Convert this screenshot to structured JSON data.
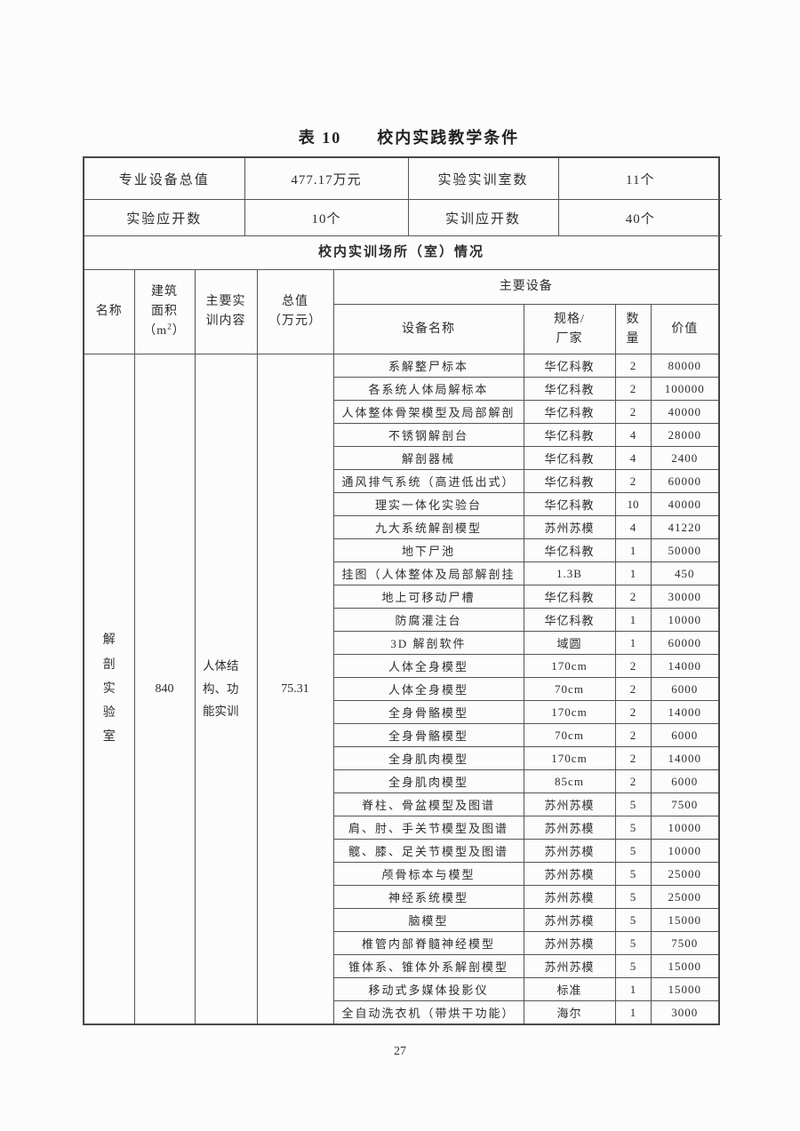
{
  "theme": {
    "text_color": "#2d2d2d",
    "border_color": "#555555",
    "background_color": "#fbfbfb"
  },
  "page": {
    "title": "表 10　　校内实践教学条件",
    "page_number": "27"
  },
  "summary_table": {
    "rows": [
      [
        "专业设备总值",
        "477.17万元",
        "实验实训室数",
        "11个"
      ],
      [
        "实验应开数",
        "10个",
        "实训应开数",
        "40个"
      ]
    ]
  },
  "section_banner": "校内实训场所（室）情况",
  "main_table": {
    "headers": {
      "name": "名称",
      "area_lines": [
        "建筑",
        "面积"
      ],
      "area_unit": {
        "open": "（m",
        "sup": "2",
        "close": "）"
      },
      "content_lines": [
        "主要实",
        "训内容"
      ],
      "total_lines": [
        "总值",
        "（万元）"
      ],
      "equipment_group": "主要设备",
      "device_name": "设备名称",
      "spec_lines": [
        "规格/",
        "厂家"
      ],
      "qty_lines": [
        "数",
        "量"
      ],
      "price": "价值"
    },
    "room": {
      "name": "解剖实验室",
      "area": "840",
      "content": "人体结构、功能实训",
      "total": "75.31"
    },
    "equipment": [
      {
        "name": "系解整尸标本",
        "spec": "华亿科教",
        "qty": "2",
        "price": "80000"
      },
      {
        "name": "各系统人体局解标本",
        "spec": "华亿科教",
        "qty": "2",
        "price": "100000"
      },
      {
        "name": "人体整体骨架模型及局部解剖",
        "spec": "华亿科教",
        "qty": "2",
        "price": "40000"
      },
      {
        "name": "不锈钢解剖台",
        "spec": "华亿科教",
        "qty": "4",
        "price": "28000"
      },
      {
        "name": "解剖器械",
        "spec": "华亿科教",
        "qty": "4",
        "price": "2400"
      },
      {
        "name": "通风排气系统（高进低出式）",
        "spec": "华亿科教",
        "qty": "2",
        "price": "60000"
      },
      {
        "name": "理实一体化实验台",
        "spec": "华亿科教",
        "qty": "10",
        "price": "40000"
      },
      {
        "name": "九大系统解剖模型",
        "spec": "苏州苏模",
        "qty": "4",
        "price": "41220"
      },
      {
        "name": "地下尸池",
        "spec": "华亿科教",
        "qty": "1",
        "price": "50000"
      },
      {
        "name": "挂图（人体整体及局部解剖挂",
        "spec": "1.3B",
        "qty": "1",
        "price": "450"
      },
      {
        "name": "地上可移动尸槽",
        "spec": "华亿科教",
        "qty": "2",
        "price": "30000"
      },
      {
        "name": "防腐灌注台",
        "spec": "华亿科教",
        "qty": "1",
        "price": "10000"
      },
      {
        "name": "3D 解剖软件",
        "spec": "域圆",
        "qty": "1",
        "price": "60000"
      },
      {
        "name": "人体全身模型",
        "spec": "170cm",
        "qty": "2",
        "price": "14000"
      },
      {
        "name": "人体全身模型",
        "spec": "70cm",
        "qty": "2",
        "price": "6000"
      },
      {
        "name": "全身骨骼模型",
        "spec": "170cm",
        "qty": "2",
        "price": "14000"
      },
      {
        "name": "全身骨骼模型",
        "spec": "70cm",
        "qty": "2",
        "price": "6000"
      },
      {
        "name": "全身肌肉模型",
        "spec": "170cm",
        "qty": "2",
        "price": "14000"
      },
      {
        "name": "全身肌肉模型",
        "spec": "85cm",
        "qty": "2",
        "price": "6000"
      },
      {
        "name": "脊柱、骨盆模型及图谱",
        "spec": "苏州苏模",
        "qty": "5",
        "price": "7500"
      },
      {
        "name": "肩、肘、手关节模型及图谱",
        "spec": "苏州苏模",
        "qty": "5",
        "price": "10000"
      },
      {
        "name": "髋、膝、足关节模型及图谱",
        "spec": "苏州苏模",
        "qty": "5",
        "price": "10000"
      },
      {
        "name": "颅骨标本与模型",
        "spec": "苏州苏模",
        "qty": "5",
        "price": "25000"
      },
      {
        "name": "神经系统模型",
        "spec": "苏州苏模",
        "qty": "5",
        "price": "25000"
      },
      {
        "name": "脑模型",
        "spec": "苏州苏模",
        "qty": "5",
        "price": "15000"
      },
      {
        "name": "椎管内部脊髓神经模型",
        "spec": "苏州苏模",
        "qty": "5",
        "price": "7500"
      },
      {
        "name": "锥体系、锥体外系解剖模型",
        "spec": "苏州苏模",
        "qty": "5",
        "price": "15000"
      },
      {
        "name": "移动式多媒体投影仪",
        "spec": "标准",
        "qty": "1",
        "price": "15000"
      },
      {
        "name": "全自动洗衣机（带烘干功能）",
        "spec": "海尔",
        "qty": "1",
        "price": "3000"
      }
    ]
  }
}
